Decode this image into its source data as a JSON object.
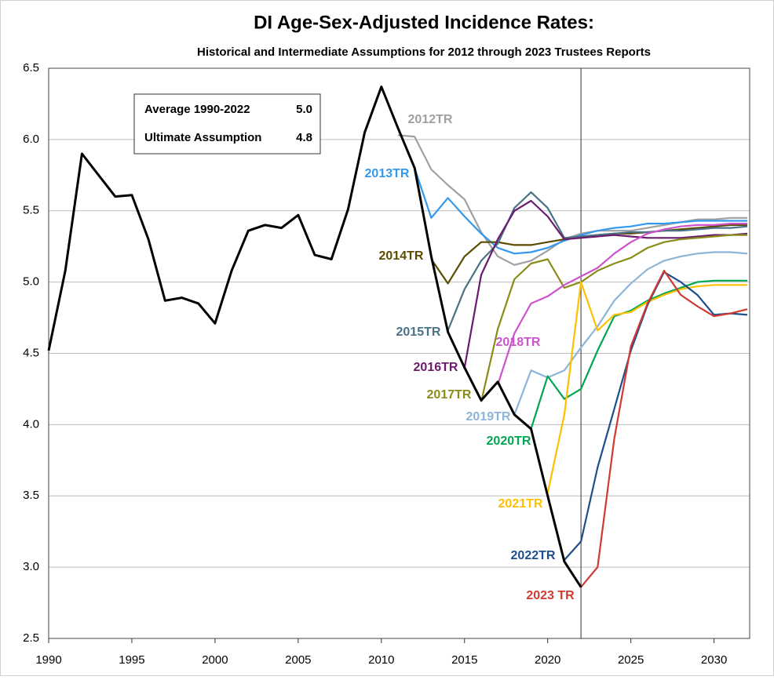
{
  "chart_data": {
    "type": "line",
    "title": "DI Age-Sex-Adjusted Incidence Rates:",
    "subtitle": "Historical and Intermediate Assumptions for 2012 through 2023 Trustees Reports",
    "xlim": [
      1990,
      2032
    ],
    "xticks": [
      1990,
      1995,
      2000,
      2005,
      2010,
      2015,
      2020,
      2025,
      2030
    ],
    "ylim": [
      2.5,
      6.5
    ],
    "yticks": [
      2.5,
      {
        "value": 3.0,
        "label": "3.0"
      },
      3.5,
      {
        "value": 4.0,
        "label": "4.0"
      },
      4.5,
      {
        "value": 5.0,
        "label": "5.0"
      },
      5.5,
      {
        "value": 6.0,
        "label": "6.0"
      },
      6.5
    ],
    "grid": true,
    "vline": 2022,
    "annotations": [
      {
        "text": "Average 1990-2022",
        "value": "5.0"
      },
      {
        "text": "Ultimate Assumption",
        "value": "4.8"
      }
    ],
    "series": [
      {
        "color": "#000000",
        "x": [
          1990,
          1991,
          1992,
          1993,
          1994,
          1995,
          1996,
          1997,
          1998,
          1999,
          2000,
          2001,
          2002,
          2003,
          2004,
          2005,
          2006,
          2007,
          2008,
          2009,
          2010,
          2011,
          2012,
          2013,
          2014,
          2015,
          2016,
          2017,
          2018,
          2019,
          2020,
          2021,
          2022
        ],
        "values": [
          4.52,
          5.08,
          5.9,
          5.75,
          5.6,
          5.61,
          5.3,
          4.87,
          4.89,
          4.85,
          4.71,
          5.08,
          5.36,
          5.4,
          5.38,
          5.47,
          5.19,
          5.16,
          5.51,
          6.05,
          6.37,
          6.08,
          5.8,
          5.18,
          4.65,
          4.4,
          4.17,
          4.3,
          4.07,
          3.97,
          3.5,
          3.04,
          2.86
        ]
      },
      {
        "name": "2012TR",
        "color": "#a0a0a0",
        "x": [
          2011,
          2012,
          2013,
          2014,
          2015,
          2016,
          2017,
          2018,
          2019,
          2020,
          2021,
          2022,
          2023,
          2024,
          2025,
          2026,
          2027,
          2028,
          2029,
          2030,
          2031,
          2032
        ],
        "values": [
          6.03,
          6.02,
          5.79,
          5.68,
          5.58,
          5.35,
          5.18,
          5.12,
          5.15,
          5.22,
          5.3,
          5.34,
          5.36,
          5.36,
          5.36,
          5.38,
          5.4,
          5.42,
          5.44,
          5.44,
          5.45,
          5.45
        ]
      },
      {
        "name": "2013TR",
        "color": "#3399ee",
        "x": [
          2012,
          2013,
          2014,
          2015,
          2016,
          2017,
          2018,
          2019,
          2020,
          2021,
          2022,
          2023,
          2024,
          2025,
          2026,
          2027,
          2028,
          2029,
          2030,
          2031,
          2032
        ],
        "values": [
          5.8,
          5.45,
          5.59,
          5.46,
          5.34,
          5.24,
          5.2,
          5.21,
          5.24,
          5.29,
          5.33,
          5.36,
          5.38,
          5.39,
          5.41,
          5.41,
          5.42,
          5.43,
          5.43,
          5.43,
          5.43
        ]
      },
      {
        "name": "2014TR",
        "color": "#5c4a00",
        "x": [
          2013,
          2014,
          2015,
          2016,
          2017,
          2018,
          2019,
          2020,
          2021,
          2022,
          2023,
          2024,
          2025,
          2026,
          2027,
          2028,
          2029,
          2030,
          2031,
          2032
        ],
        "values": [
          5.16,
          4.99,
          5.18,
          5.28,
          5.28,
          5.26,
          5.26,
          5.28,
          5.3,
          5.32,
          5.33,
          5.34,
          5.34,
          5.35,
          5.36,
          5.37,
          5.38,
          5.39,
          5.4,
          5.4
        ]
      },
      {
        "name": "2015TR",
        "color": "#4a7287",
        "x": [
          2014,
          2015,
          2016,
          2017,
          2018,
          2019,
          2020,
          2021,
          2022,
          2023,
          2024,
          2025,
          2026,
          2027,
          2028,
          2029,
          2030,
          2031,
          2032
        ],
        "values": [
          4.66,
          4.95,
          5.15,
          5.27,
          5.52,
          5.63,
          5.52,
          5.31,
          5.32,
          5.33,
          5.34,
          5.35,
          5.35,
          5.36,
          5.36,
          5.37,
          5.38,
          5.38,
          5.39
        ]
      },
      {
        "name": "2016TR",
        "color": "#6a1b6e",
        "x": [
          2015,
          2016,
          2017,
          2018,
          2019,
          2020,
          2021,
          2022,
          2023,
          2024,
          2025,
          2026,
          2027,
          2028,
          2029,
          2030,
          2031,
          2032
        ],
        "values": [
          4.4,
          5.05,
          5.3,
          5.5,
          5.57,
          5.46,
          5.3,
          5.31,
          5.32,
          5.33,
          5.32,
          5.31,
          5.31,
          5.31,
          5.32,
          5.33,
          5.33,
          5.34
        ]
      },
      {
        "name": "2017TR",
        "color": "#8b8b1a",
        "x": [
          2016,
          2017,
          2018,
          2019,
          2020,
          2021,
          2022,
          2023,
          2024,
          2025,
          2026,
          2027,
          2028,
          2029,
          2030,
          2031,
          2032
        ],
        "values": [
          4.16,
          4.67,
          5.02,
          5.13,
          5.16,
          4.96,
          5.0,
          5.08,
          5.13,
          5.17,
          5.24,
          5.28,
          5.3,
          5.31,
          5.32,
          5.33,
          5.33
        ]
      },
      {
        "name": "2018TR",
        "color": "#cc55cc",
        "x": [
          2017,
          2018,
          2019,
          2020,
          2021,
          2022,
          2023,
          2024,
          2025,
          2026,
          2027,
          2028,
          2029,
          2030,
          2031,
          2032
        ],
        "values": [
          4.28,
          4.64,
          4.85,
          4.9,
          4.98,
          5.04,
          5.1,
          5.2,
          5.28,
          5.34,
          5.37,
          5.39,
          5.4,
          5.4,
          5.41,
          5.41
        ]
      },
      {
        "name": "2019TR",
        "color": "#8db4d9",
        "x": [
          2018,
          2019,
          2020,
          2021,
          2022,
          2023,
          2024,
          2025,
          2026,
          2027,
          2028,
          2029,
          2030,
          2031,
          2032
        ],
        "values": [
          4.07,
          4.38,
          4.33,
          4.38,
          4.54,
          4.69,
          4.87,
          4.99,
          5.09,
          5.15,
          5.18,
          5.2,
          5.21,
          5.21,
          5.2
        ]
      },
      {
        "name": "2020TR",
        "color": "#00a651",
        "x": [
          2019,
          2020,
          2021,
          2022,
          2023,
          2024,
          2025,
          2026,
          2027,
          2028,
          2029,
          2030,
          2031,
          2032
        ],
        "values": [
          3.97,
          4.34,
          4.18,
          4.25,
          4.52,
          4.76,
          4.8,
          4.87,
          4.92,
          4.96,
          5.0,
          5.01,
          5.01,
          5.01
        ]
      },
      {
        "name": "2021TR",
        "color": "#ffc000",
        "x": [
          2020,
          2021,
          2022,
          2023,
          2024,
          2025,
          2026,
          2027,
          2028,
          2029,
          2030,
          2031,
          2032
        ],
        "values": [
          3.52,
          4.07,
          5.0,
          4.66,
          4.77,
          4.79,
          4.86,
          4.91,
          4.95,
          4.97,
          4.98,
          4.98,
          4.98
        ]
      },
      {
        "name": "2022TR",
        "color": "#1f4e8c",
        "x": [
          2021,
          2022,
          2023,
          2024,
          2025,
          2026,
          2027,
          2028,
          2029,
          2030,
          2031,
          2032
        ],
        "values": [
          3.05,
          3.18,
          3.7,
          4.11,
          4.52,
          4.84,
          5.07,
          5.0,
          4.91,
          4.77,
          4.78,
          4.77
        ]
      },
      {
        "name": "2023 TR",
        "color": "#d03a30",
        "x": [
          2022,
          2023,
          2024,
          2025,
          2026,
          2027,
          2028,
          2029,
          2030,
          2031,
          2032
        ],
        "values": [
          2.86,
          3.0,
          3.9,
          4.55,
          4.85,
          5.08,
          4.91,
          4.83,
          4.76,
          4.78,
          4.81
        ]
      }
    ]
  }
}
